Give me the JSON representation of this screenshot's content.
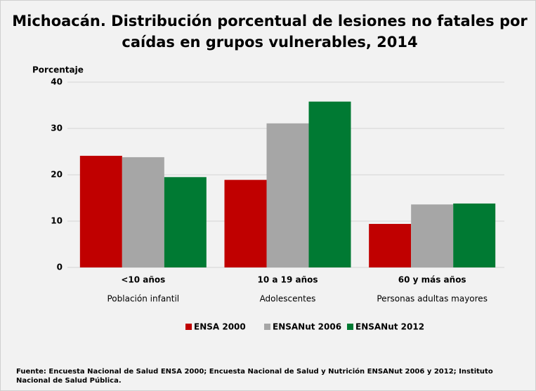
{
  "chart_data": {
    "type": "bar",
    "title": [
      "Michoacán. Distribución porcentual de lesiones no fatales por",
      "caídas en grupos vulnerables, 2014"
    ],
    "y_label": "Porcentaje",
    "categories": [
      "<10 años",
      "10 a 19 años",
      "60 y más años"
    ],
    "subcategories": [
      "Población infantil",
      "Adolescentes",
      "Personas adultas mayores"
    ],
    "series": [
      {
        "name": "ENSA 2000",
        "color": "#c00000",
        "values": [
          24.1,
          18.9,
          9.4
        ]
      },
      {
        "name": "ENSANut 2006",
        "color": "#a6a6a6",
        "values": [
          23.8,
          31.1,
          13.6
        ]
      },
      {
        "name": "ENSANut 2012",
        "color": "#007a33",
        "values": [
          19.5,
          35.8,
          13.8
        ]
      }
    ],
    "ylim": [
      0,
      40
    ],
    "yticks": [
      0,
      10,
      20,
      30,
      40
    ],
    "grid": true,
    "legend": "bottom",
    "source": "Fuente: Encuesta Nacional de Salud ENSA 2000; Encuesta Nacional de Salud y Nutrición ENSANut 2006 y 2012; Instituto Nacional de Salud Pública."
  }
}
